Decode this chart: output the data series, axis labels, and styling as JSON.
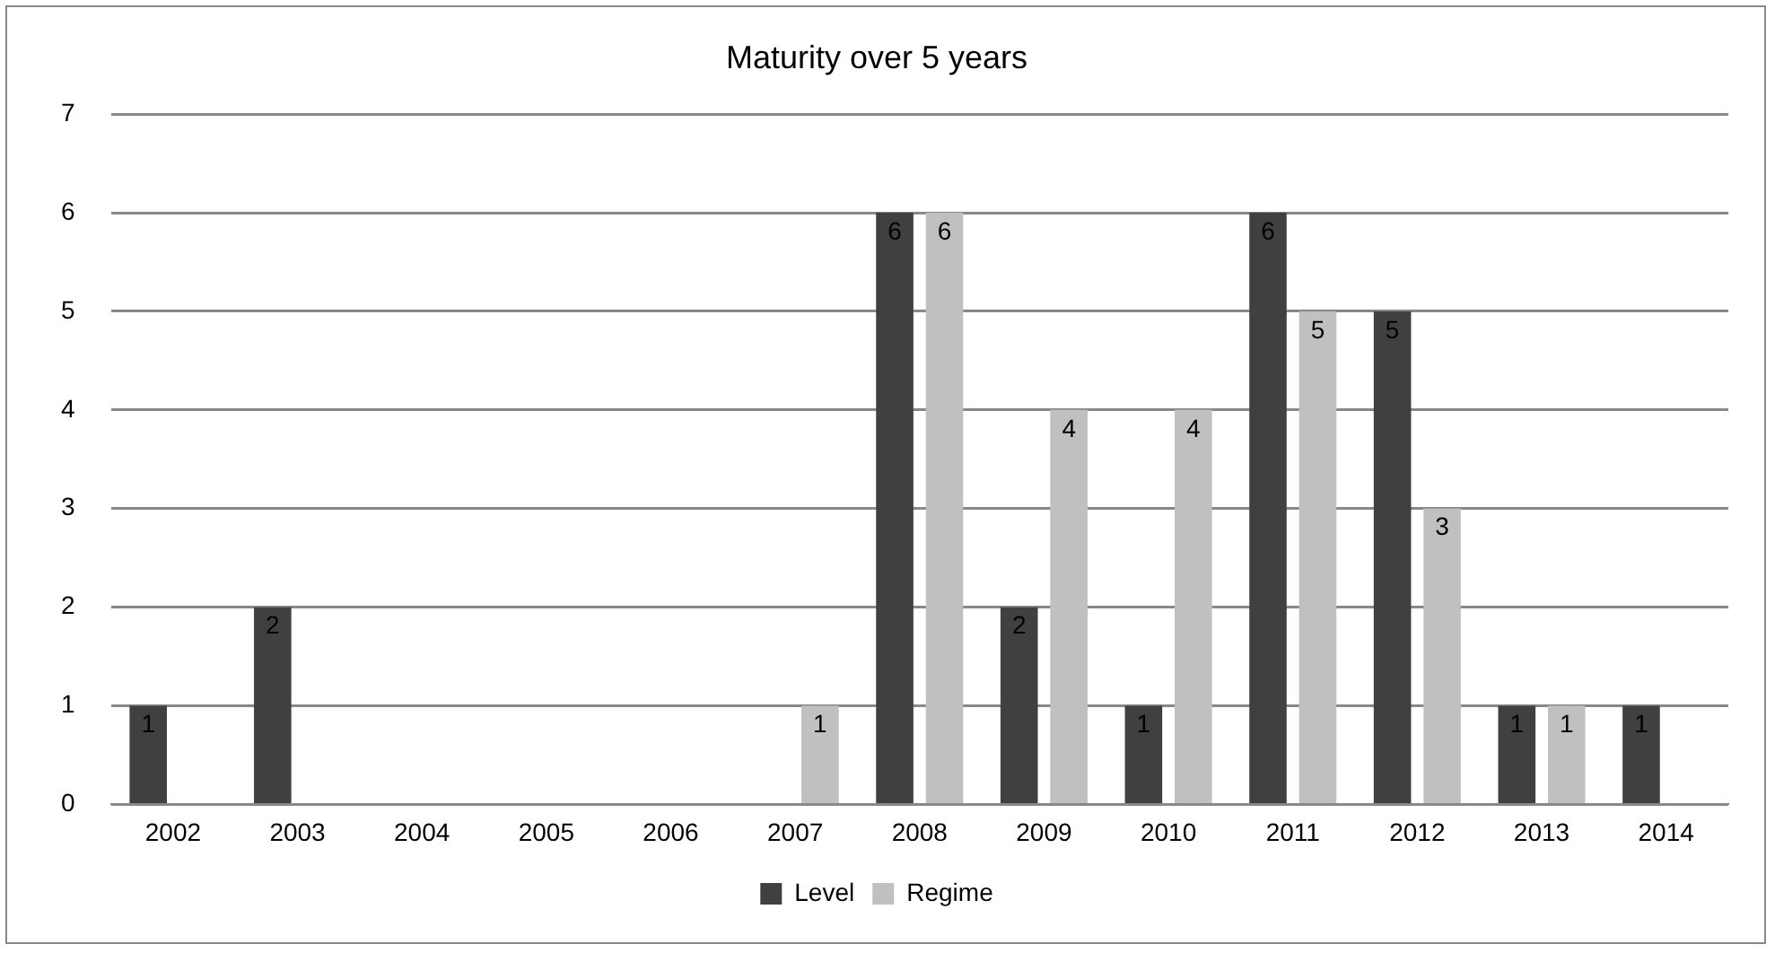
{
  "chart_data": {
    "type": "bar",
    "title": "Maturity over 5 years",
    "categories": [
      "2002",
      "2003",
      "2004",
      "2005",
      "2006",
      "2007",
      "2008",
      "2009",
      "2010",
      "2011",
      "2012",
      "2013",
      "2014"
    ],
    "series": [
      {
        "name": "Level",
        "color": "#404040",
        "values": [
          1,
          2,
          0,
          0,
          0,
          0,
          6,
          2,
          1,
          6,
          5,
          1,
          1
        ],
        "value_labels": [
          "1",
          "2",
          null,
          null,
          null,
          null,
          "6",
          "2",
          "1",
          "6",
          "5",
          "1",
          "1"
        ]
      },
      {
        "name": "Regime",
        "color": "#c0c0c0",
        "values": [
          0,
          0,
          0,
          0,
          0,
          1,
          6,
          4,
          4,
          5,
          3,
          1,
          0
        ],
        "value_labels": [
          null,
          null,
          null,
          null,
          null,
          "1",
          "6",
          "4",
          "4",
          "5",
          "3",
          "1",
          null
        ]
      }
    ],
    "ylim": [
      0,
      7
    ],
    "yticks": [
      0,
      1,
      2,
      3,
      4,
      5,
      6,
      7
    ],
    "grid": "y",
    "legend": "bottom"
  }
}
